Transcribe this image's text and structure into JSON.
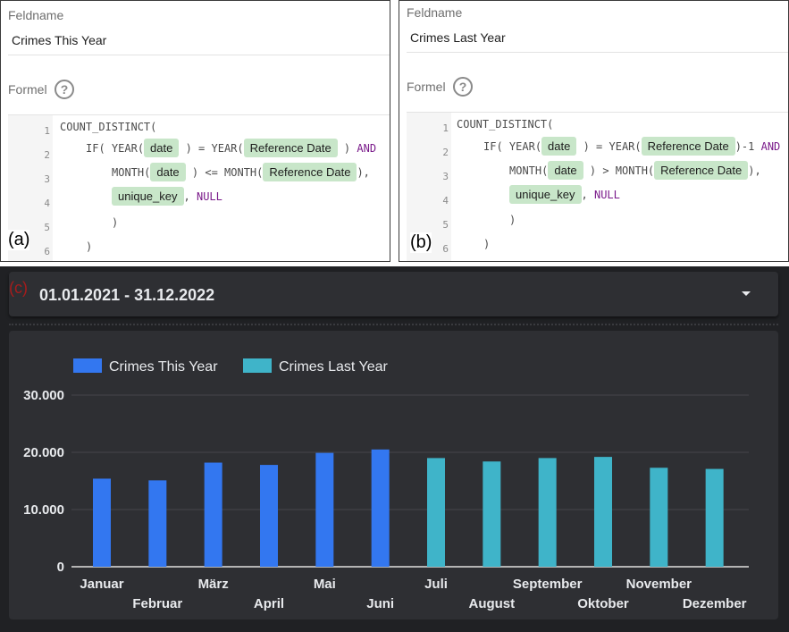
{
  "panel_a": {
    "tag": "(a)",
    "field_label": "Feldname",
    "field_value": "Crimes This Year",
    "formula_label": "Formel",
    "line_numbers": [
      "1",
      "2",
      "3",
      "4",
      "5",
      "6"
    ],
    "code": {
      "l1": "COUNT_DISTINCT(",
      "if": "IF(",
      "year": "YEAR(",
      "chip_date": "date",
      "eq_year": ") = YEAR(",
      "chip_ref": "Reference Date",
      "and_close": ")",
      "and": "AND",
      "month": "MONTH(",
      "cmp_month": ") <= MONTH(",
      "close_comma": "),",
      "chip_key": "unique_key",
      "comma": ",",
      "null": "NULL",
      "paren1": ")",
      "paren2": ")"
    }
  },
  "panel_b": {
    "tag": "(b)",
    "field_label": "Feldname",
    "field_value": "Crimes Last Year",
    "formula_label": "Formel",
    "line_numbers": [
      "1",
      "2",
      "3",
      "4",
      "5",
      "6"
    ],
    "code": {
      "l1": "COUNT_DISTINCT(",
      "if": "IF(",
      "year": "YEAR(",
      "chip_date": "date",
      "eq_year": ") = YEAR(",
      "chip_ref": "Reference Date",
      "minus_one": ")-1",
      "and": "AND",
      "month": "MONTH(",
      "cmp_month": ") > MONTH(",
      "close_comma": "),",
      "chip_key": "unique_key",
      "comma": ",",
      "null": "NULL",
      "paren1": ")",
      "paren2": ")"
    }
  },
  "panel_c": {
    "tag": "(c)",
    "date_range": "01.01.2021 - 31.12.2022",
    "dropdown_icon": "caret-down-icon"
  },
  "colors": {
    "this_year": "#3377f0",
    "last_year": "#3fb4c9",
    "chart_bg": "#2e2f33",
    "page_dark": "#202124"
  },
  "chart_data": {
    "type": "bar",
    "categories": [
      "Januar",
      "Februar",
      "März",
      "April",
      "Mai",
      "Juni",
      "Juli",
      "August",
      "September",
      "Oktober",
      "November",
      "Dezember"
    ],
    "series": [
      {
        "name": "Crimes This Year",
        "values": [
          15400,
          15100,
          18200,
          17800,
          19900,
          20500,
          null,
          null,
          null,
          null,
          null,
          null
        ]
      },
      {
        "name": "Crimes Last Year",
        "values": [
          null,
          null,
          null,
          null,
          null,
          null,
          19000,
          18400,
          19000,
          19200,
          17300,
          17100
        ]
      }
    ],
    "y_ticks": [
      "0",
      "10.000",
      "20.000",
      "30.000"
    ],
    "ylim": [
      0,
      30000
    ],
    "grid": true,
    "legend_position": "top-left"
  }
}
